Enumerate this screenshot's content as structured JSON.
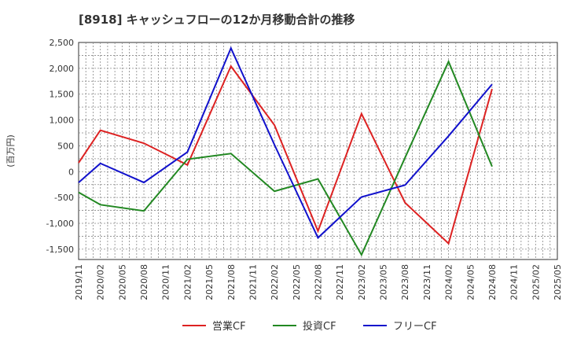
{
  "chart_data": {
    "type": "line",
    "title": "[8918]  キャッシュフローの12か月移動合計の推移",
    "ylabel": "(百万円)",
    "xlabel": "",
    "ylim": [
      -1700,
      2500
    ],
    "yticks": [
      2500,
      2000,
      1500,
      1000,
      500,
      0,
      -500,
      -1000,
      -1500
    ],
    "ytick_labels": [
      "2,500",
      "2,000",
      "1,500",
      "1,000",
      "500",
      "0",
      "-500",
      "-1,000",
      "-1,500"
    ],
    "x_labels": [
      "2019/11",
      "2020/02",
      "2020/05",
      "2020/08",
      "2020/11",
      "2021/02",
      "2021/05",
      "2021/08",
      "2021/11",
      "2022/02",
      "2022/05",
      "2022/08",
      "2022/11",
      "2023/02",
      "2023/05",
      "2023/08",
      "2023/11",
      "2024/02",
      "2024/05",
      "2024/08",
      "2024/11",
      "2025/02",
      "2025/05"
    ],
    "grid": true,
    "legend_position": "bottom-center",
    "series": [
      {
        "name": "営業CF",
        "color": "#dd2222",
        "points": [
          [
            "2019/11",
            170
          ],
          [
            "2020/02",
            800
          ],
          [
            "2020/08",
            550
          ],
          [
            "2021/02",
            130
          ],
          [
            "2021/08",
            2040
          ],
          [
            "2022/02",
            900
          ],
          [
            "2022/08",
            -1150
          ],
          [
            "2023/02",
            1120
          ],
          [
            "2023/08",
            -600
          ],
          [
            "2024/02",
            -1390
          ],
          [
            "2024/08",
            1600
          ]
        ]
      },
      {
        "name": "投資CF",
        "color": "#228822",
        "points": [
          [
            "2019/11",
            -400
          ],
          [
            "2020/02",
            -640
          ],
          [
            "2020/08",
            -760
          ],
          [
            "2021/02",
            240
          ],
          [
            "2021/08",
            350
          ],
          [
            "2022/02",
            -380
          ],
          [
            "2022/08",
            -140
          ],
          [
            "2023/02",
            -1610
          ],
          [
            "2023/08",
            270
          ],
          [
            "2024/02",
            2130
          ],
          [
            "2024/08",
            100
          ]
        ]
      },
      {
        "name": "フリーCF",
        "color": "#1111cc",
        "points": [
          [
            "2019/11",
            -210
          ],
          [
            "2020/02",
            160
          ],
          [
            "2020/08",
            -210
          ],
          [
            "2021/02",
            380
          ],
          [
            "2021/08",
            2390
          ],
          [
            "2022/02",
            520
          ],
          [
            "2022/08",
            -1280
          ],
          [
            "2023/02",
            -490
          ],
          [
            "2023/08",
            -260
          ],
          [
            "2024/02",
            690
          ],
          [
            "2024/08",
            1690
          ]
        ]
      }
    ]
  }
}
